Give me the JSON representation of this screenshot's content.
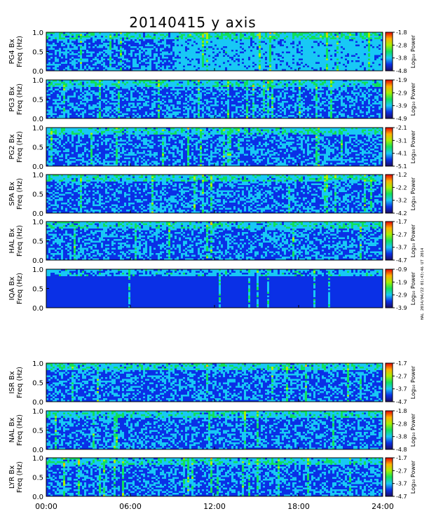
{
  "figure": {
    "title": "20140415 y axis",
    "side_note": "HAL 2014/04/22 01:43:46 UT 2014"
  },
  "colors": {
    "colormap": [
      "#1a0d66",
      "#0a30e6",
      "#18c8f5",
      "#10e05a",
      "#a8f000",
      "#ffb000",
      "#e60000"
    ],
    "background": "#ffffff",
    "axis": "#000000"
  },
  "chart_data": {
    "type": "heatmap",
    "x_ticks": [
      "00:00",
      "06:00",
      "12:00",
      "18:00",
      "24:00"
    ],
    "xlim_hours": [
      0,
      24
    ],
    "y_ticks": [
      "0.0",
      "0.5",
      "1.0"
    ],
    "ylim": [
      0,
      1
    ],
    "colorbar_label": "Log₁₀ Power",
    "panels": [
      {
        "name": "PG4 Bx",
        "ylabel": "Freq (Hz)",
        "cbar_ticks": [
          "-1.8",
          "-2.8",
          "-3.8",
          "-4.8"
        ],
        "clim": [
          -4.8,
          -1.8
        ]
      },
      {
        "name": "PG3 Bx",
        "ylabel": "Freq (Hz)",
        "cbar_ticks": [
          "-1.9",
          "-2.9",
          "-3.9",
          "-4.9"
        ],
        "clim": [
          -4.9,
          -1.9
        ]
      },
      {
        "name": "PG2 Bx",
        "ylabel": "Freq (Hz)",
        "cbar_ticks": [
          "-2.1",
          "-3.1",
          "-4.1",
          "-5.1"
        ],
        "clim": [
          -5.1,
          -2.1
        ]
      },
      {
        "name": "SPA Bx",
        "ylabel": "Freq (Hz)",
        "cbar_ticks": [
          "-1.2",
          "-2.2",
          "-3.2",
          "-4.2"
        ],
        "clim": [
          -4.2,
          -1.2
        ]
      },
      {
        "name": "HAL Bx",
        "ylabel": "Freq (Hz)",
        "cbar_ticks": [
          "-1.7",
          "-2.7",
          "-3.7",
          "-4.7"
        ],
        "clim": [
          -4.7,
          -1.7
        ]
      },
      {
        "name": "IQA Bx",
        "ylabel": "Freq (Hz)",
        "cbar_ticks": [
          "-0.9",
          "-1.9",
          "-2.9",
          "-3.9"
        ],
        "clim": [
          -3.9,
          -0.9
        ]
      },
      {
        "name": "ISR Bx",
        "ylabel": "Freq (Hz)",
        "cbar_ticks": [
          "-1.7",
          "-2.7",
          "-3.7",
          "-4.7"
        ],
        "clim": [
          -4.7,
          -1.7
        ]
      },
      {
        "name": "NAL Bx",
        "ylabel": "Freq (Hz)",
        "cbar_ticks": [
          "-1.8",
          "-2.8",
          "-3.8",
          "-4.8"
        ],
        "clim": [
          -4.8,
          -1.8
        ]
      },
      {
        "name": "LYR Bx",
        "ylabel": "Freq (Hz)",
        "cbar_ticks": [
          "-1.7",
          "-2.7",
          "-3.7",
          "-4.7"
        ],
        "clim": [
          -4.7,
          -1.7
        ]
      }
    ]
  }
}
